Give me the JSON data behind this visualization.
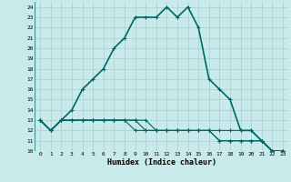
{
  "xlabel": "Humidex (Indice chaleur)",
  "background_color": "#c8eaea",
  "line_color": "#006666",
  "grid_color": "#a8d0d0",
  "xlim": [
    -0.5,
    23.5
  ],
  "ylim": [
    10,
    24.5
  ],
  "x_ticks": [
    0,
    1,
    2,
    3,
    4,
    5,
    6,
    7,
    8,
    9,
    10,
    11,
    12,
    13,
    14,
    15,
    16,
    17,
    18,
    19,
    20,
    21,
    22,
    23
  ],
  "y_ticks": [
    10,
    11,
    12,
    13,
    14,
    15,
    16,
    17,
    18,
    19,
    20,
    21,
    22,
    23,
    24
  ],
  "series": [
    [
      13,
      12,
      13,
      14,
      16,
      17,
      18,
      20,
      21,
      23,
      23,
      23,
      24,
      23,
      24,
      22,
      17,
      16,
      15,
      12,
      12,
      11,
      10,
      10
    ],
    [
      13,
      12,
      13,
      13,
      13,
      13,
      13,
      13,
      13,
      13,
      13,
      12,
      12,
      12,
      12,
      12,
      12,
      12,
      12,
      12,
      12,
      11,
      10,
      10
    ],
    [
      13,
      12,
      13,
      13,
      13,
      13,
      13,
      13,
      13,
      13,
      12,
      12,
      12,
      12,
      12,
      12,
      12,
      11,
      11,
      11,
      11,
      11,
      10,
      10
    ],
    [
      13,
      12,
      13,
      13,
      13,
      13,
      13,
      13,
      13,
      12,
      12,
      12,
      12,
      12,
      12,
      12,
      12,
      11,
      11,
      11,
      11,
      11,
      10,
      10
    ]
  ]
}
